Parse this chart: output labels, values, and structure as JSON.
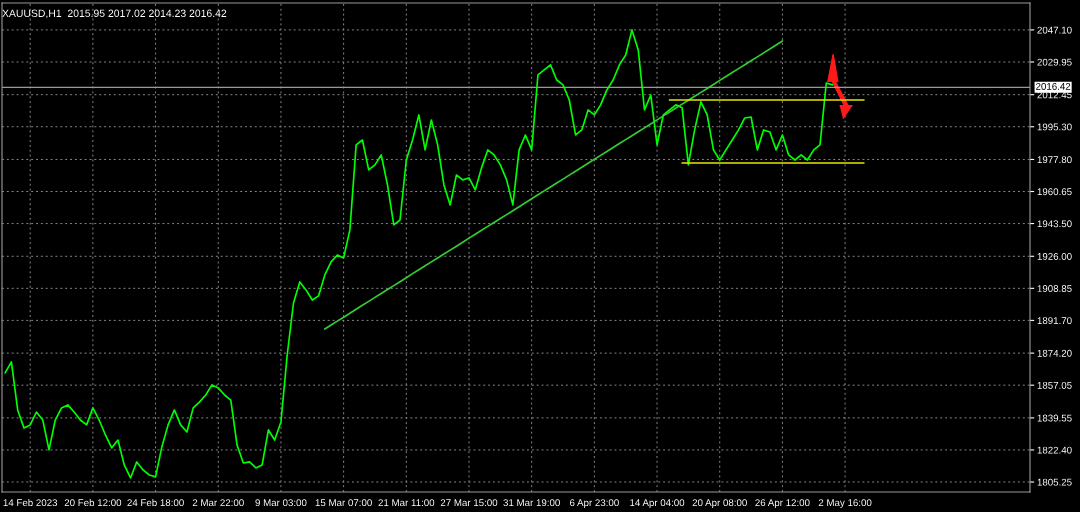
{
  "chart_data": {
    "type": "line",
    "title": "XAUUSD,H1  2015.95 2017.02 2014.23 2016.42",
    "categories": [
      null,
      null,
      null,
      null,
      "14 Feb 2023",
      null,
      null,
      null,
      null,
      null,
      null,
      null,
      null,
      null,
      "20 Feb 12:00",
      null,
      null,
      null,
      null,
      null,
      null,
      null,
      null,
      null,
      "24 Feb 18:00",
      null,
      null,
      null,
      null,
      null,
      null,
      null,
      null,
      null,
      "2 Mar 22:00",
      null,
      null,
      null,
      null,
      null,
      null,
      null,
      null,
      null,
      "9 Mar 03:00",
      null,
      null,
      null,
      null,
      null,
      null,
      null,
      null,
      null,
      "15 Mar 07:00",
      null,
      null,
      null,
      null,
      null,
      null,
      null,
      null,
      null,
      "21 Mar 11:00",
      null,
      null,
      null,
      null,
      null,
      null,
      null,
      null,
      null,
      "27 Mar 15:00",
      null,
      null,
      null,
      null,
      null,
      null,
      null,
      null,
      null,
      "31 Mar 19:00",
      null,
      null,
      null,
      null,
      null,
      null,
      null,
      null,
      null,
      "6 Apr 23:00",
      null,
      null,
      null,
      null,
      null,
      null,
      null,
      null,
      null,
      "14 Apr 04:00",
      null,
      null,
      null,
      null,
      null,
      null,
      null,
      null,
      null,
      "20 Apr 08:00",
      null,
      null,
      null,
      null,
      null,
      null,
      null,
      null,
      null,
      "26 Apr 12:00",
      null,
      null,
      null,
      null,
      null,
      null,
      null,
      null,
      null,
      "2 May 16:00",
      null,
      null,
      null,
      null,
      null,
      null,
      null,
      null,
      null,
      null,
      null,
      null,
      null,
      null,
      null,
      null,
      null,
      null,
      null,
      null,
      null,
      null,
      null,
      null,
      null,
      null,
      null,
      null,
      null
    ],
    "ylim": [
      1799.9,
      2061.5
    ],
    "yticks": [
      {
        "value": 1805.25,
        "label": "1805.25"
      },
      {
        "value": 1822.4,
        "label": "1822.40"
      },
      {
        "value": 1839.55,
        "label": "1839.55"
      },
      {
        "value": 1857.05,
        "label": "1857.05"
      },
      {
        "value": 1874.2,
        "label": "1874.20"
      },
      {
        "value": 1891.7,
        "label": "1891.70"
      },
      {
        "value": 1908.85,
        "label": "1908.85"
      },
      {
        "value": 1926.0,
        "label": "1926.00"
      },
      {
        "value": 1943.5,
        "label": "1943.50"
      },
      {
        "value": 1960.65,
        "label": "1960.65"
      },
      {
        "value": 1977.8,
        "label": "1977.80"
      },
      {
        "value": 1995.3,
        "label": "1995.30"
      },
      {
        "value": 2012.45,
        "label": "2012.45"
      },
      {
        "value": 2029.95,
        "label": "2029.95"
      },
      {
        "value": 2047.1,
        "label": "2047.10"
      }
    ],
    "grid": true,
    "line_style": "solid",
    "ref_lines": [
      {
        "axis": "y",
        "value": 2016.42,
        "label": "2016.42",
        "color": "#9a9a9a"
      }
    ],
    "series": [
      {
        "color": "#00ff00",
        "values": [
          1863.6,
          1869.5,
          1843.8,
          1834.2,
          1835.8,
          1842.7,
          1838.4,
          1822.4,
          1838.4,
          1844.9,
          1846.5,
          1842.7,
          1838.4,
          1835.8,
          1844.9,
          1838.4,
          1830.4,
          1823.5,
          1827.7,
          1814.4,
          1807.4,
          1816.0,
          1811.7,
          1809.0,
          1808.0,
          1824.0,
          1835.8,
          1843.8,
          1835.8,
          1832.0,
          1844.9,
          1848.0,
          1851.8,
          1857.2,
          1855.6,
          1851.8,
          1849.1,
          1825.0,
          1815.4,
          1816.0,
          1812.8,
          1814.4,
          1833.1,
          1827.7,
          1837.4,
          1873.2,
          1901.0,
          1912.3,
          1908.0,
          1902.6,
          1904.8,
          1916.0,
          1923.0,
          1926.7,
          1925.1,
          1940.1,
          1985.6,
          1988.2,
          1972.2,
          1974.9,
          1980.2,
          1964.2,
          1942.8,
          1945.4,
          1977.5,
          1988.2,
          2001.6,
          1982.9,
          1998.9,
          1985.6,
          1964.2,
          1953.5,
          1969.5,
          1966.9,
          1967.9,
          1961.5,
          1973.3,
          1982.9,
          1980.2,
          1974.9,
          1966.9,
          1953.5,
          1982.9,
          1990.9,
          1982.9,
          2023.0,
          2025.7,
          2028.4,
          2020.3,
          2017.7,
          2009.6,
          1990.9,
          1993.6,
          2004.3,
          2001.6,
          2007.0,
          2015.0,
          2020.3,
          2028.4,
          2033.7,
          2047.1,
          2036.4,
          2004.3,
          2012.3,
          1985.6,
          2001.6,
          2004.3,
          2007.0,
          2005.4,
          1974.9,
          1993.6,
          2008.6,
          2001.6,
          1982.9,
          1977.5,
          1982.9,
          1988.2,
          1993.6,
          2000.0,
          2000.5,
          1982.9,
          1993.6,
          1992.5,
          1982.9,
          1990.9,
          1980.2,
          1977.5,
          1980.2,
          1977.5,
          1982.9,
          1985.6,
          2018.7,
          2017.7,
          null,
          null,
          null,
          null,
          null,
          null,
          null,
          null,
          null,
          null,
          null,
          null,
          null,
          null,
          null,
          null,
          null,
          null,
          null,
          null,
          null,
          null,
          null,
          null,
          null,
          null,
          null,
          null,
          null,
          null,
          null
        ]
      },
      {
        "type": "line",
        "color": "#32cd32",
        "values": [
          null,
          null,
          null,
          null,
          null,
          null,
          null,
          null,
          null,
          null,
          null,
          null,
          null,
          null,
          null,
          null,
          null,
          null,
          null,
          null,
          null,
          null,
          null,
          null,
          null,
          null,
          null,
          null,
          null,
          null,
          null,
          null,
          null,
          null,
          null,
          null,
          null,
          null,
          null,
          null,
          null,
          null,
          null,
          null,
          null,
          null,
          null,
          null,
          null,
          null,
          null,
          1887.1,
          1889.2,
          1891.3,
          1893.4,
          1895.5,
          1897.7,
          1899.8,
          1901.9,
          1904.0,
          1906.1,
          1908.2,
          1910.3,
          1912.4,
          1914.5,
          1916.7,
          1918.8,
          1920.9,
          1923.0,
          1925.1,
          1927.2,
          1929.3,
          1931.4,
          1933.5,
          1935.7,
          1937.8,
          1939.9,
          1942.0,
          1944.1,
          1946.2,
          1948.3,
          1950.4,
          1952.5,
          1954.6,
          1956.8,
          1958.9,
          1961.0,
          1963.1,
          1965.2,
          1967.3,
          1969.4,
          1971.5,
          1973.6,
          1975.8,
          1977.9,
          1980.0,
          1982.1,
          1984.2,
          1986.3,
          1988.4,
          1990.5,
          1992.6,
          1994.7,
          1996.8,
          1999.0,
          2001.1,
          2003.2,
          2005.3,
          2007.4,
          2009.5,
          2011.6,
          2013.7,
          2015.8,
          2017.9,
          2020.1,
          2022.2,
          2024.3,
          2026.4,
          2028.5,
          2030.6,
          2032.7,
          2034.8,
          2036.9,
          2039.0,
          2041.2,
          null,
          null,
          null,
          null,
          null,
          null,
          null,
          null,
          null,
          null,
          null,
          null,
          null,
          null,
          null,
          null,
          null,
          null,
          null,
          null,
          null,
          null,
          null,
          null,
          null,
          null,
          null,
          null,
          null,
          null,
          null,
          null,
          null,
          null,
          null,
          null,
          null,
          null,
          null
        ]
      },
      {
        "type": "line",
        "color": "#e6e600",
        "values": [
          null,
          null,
          null,
          null,
          null,
          null,
          null,
          null,
          null,
          null,
          null,
          null,
          null,
          null,
          null,
          null,
          null,
          null,
          null,
          null,
          null,
          null,
          null,
          null,
          null,
          null,
          null,
          null,
          null,
          null,
          null,
          null,
          null,
          null,
          null,
          null,
          null,
          null,
          null,
          null,
          null,
          null,
          null,
          null,
          null,
          null,
          null,
          null,
          null,
          null,
          null,
          null,
          null,
          null,
          null,
          null,
          null,
          null,
          null,
          null,
          null,
          null,
          null,
          null,
          null,
          null,
          null,
          null,
          null,
          null,
          null,
          null,
          null,
          null,
          null,
          null,
          null,
          null,
          null,
          null,
          null,
          null,
          null,
          null,
          null,
          null,
          null,
          null,
          null,
          null,
          null,
          null,
          null,
          null,
          null,
          null,
          null,
          null,
          null,
          null,
          null,
          null,
          null,
          null,
          null,
          null,
          2009.6,
          2009.6,
          2009.6,
          2009.6,
          2009.6,
          2009.6,
          2009.6,
          2009.6,
          2009.6,
          2009.6,
          2009.6,
          2009.6,
          2009.6,
          2009.6,
          2009.6,
          2009.6,
          2009.6,
          2009.6,
          2009.6,
          2009.6,
          2009.6,
          2009.6,
          2009.6,
          2009.6,
          2009.6,
          2009.6,
          2009.6,
          2009.6,
          2009.6,
          2009.6,
          2009.6,
          2009.6,
          null,
          null,
          null,
          null,
          null,
          null,
          null,
          null,
          null,
          null,
          null,
          null,
          null,
          null,
          null,
          null,
          null,
          null,
          null,
          null,
          null,
          null,
          null,
          null,
          null,
          null
        ]
      },
      {
        "type": "line",
        "color": "#e6e600",
        "values": [
          null,
          null,
          null,
          null,
          null,
          null,
          null,
          null,
          null,
          null,
          null,
          null,
          null,
          null,
          null,
          null,
          null,
          null,
          null,
          null,
          null,
          null,
          null,
          null,
          null,
          null,
          null,
          null,
          null,
          null,
          null,
          null,
          null,
          null,
          null,
          null,
          null,
          null,
          null,
          null,
          null,
          null,
          null,
          null,
          null,
          null,
          null,
          null,
          null,
          null,
          null,
          null,
          null,
          null,
          null,
          null,
          null,
          null,
          null,
          null,
          null,
          null,
          null,
          null,
          null,
          null,
          null,
          null,
          null,
          null,
          null,
          null,
          null,
          null,
          null,
          null,
          null,
          null,
          null,
          null,
          null,
          null,
          null,
          null,
          null,
          null,
          null,
          null,
          null,
          null,
          null,
          null,
          null,
          null,
          null,
          null,
          null,
          null,
          null,
          null,
          null,
          null,
          null,
          null,
          null,
          null,
          null,
          null,
          1975.9,
          1975.9,
          1975.9,
          1975.9,
          1975.9,
          1975.9,
          1975.9,
          1975.9,
          1975.9,
          1975.9,
          1975.9,
          1975.9,
          1975.9,
          1975.9,
          1975.9,
          1975.9,
          1975.9,
          1975.9,
          1975.9,
          1975.9,
          1975.9,
          1975.9,
          1975.9,
          1975.9,
          1975.9,
          1975.9,
          1975.9,
          1975.9,
          1975.9,
          1975.9,
          null,
          null,
          null,
          null,
          null,
          null,
          null,
          null,
          null,
          null,
          null,
          null,
          null,
          null,
          null,
          null,
          null,
          null,
          null,
          null,
          null,
          null,
          null,
          null,
          null,
          null
        ]
      }
    ]
  }
}
